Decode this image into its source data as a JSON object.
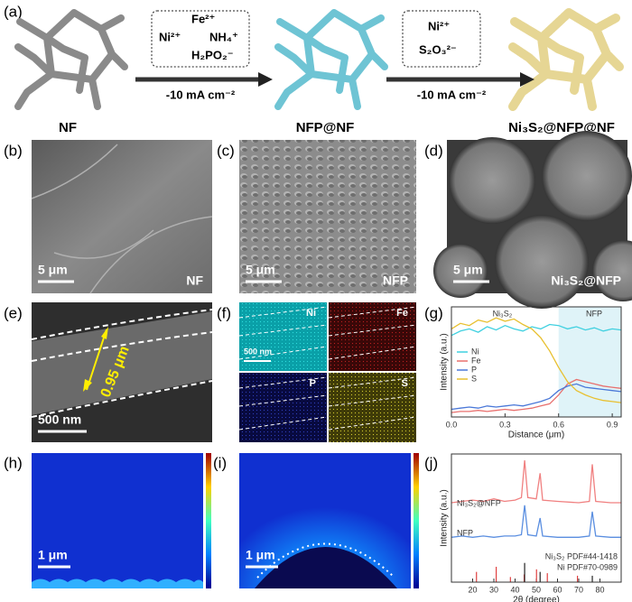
{
  "panel_labels": [
    "(a)",
    "(b)",
    "(c)",
    "(d)",
    "(e)",
    "(f)",
    "(g)",
    "(h)",
    "(i)",
    "(j)"
  ],
  "schematic": {
    "materials": [
      "NF",
      "NFP@NF",
      "Ni₃S₂@NFP@NF"
    ],
    "step1": {
      "reagents": [
        "Fe²⁺",
        "Ni²⁺",
        "NH₄⁺",
        "H₂PO₂⁻"
      ],
      "current": "-10 mA cm⁻²"
    },
    "step2": {
      "reagents": [
        "Ni²⁺",
        "S₂O₃²⁻"
      ],
      "current": "-10 mA cm⁻²"
    }
  },
  "sem": {
    "b": {
      "scale": "5 μm",
      "label": "NF"
    },
    "c": {
      "scale": "5 μm",
      "label": "NFP"
    },
    "d": {
      "scale": "5 μm",
      "label": "Ni₃S₂@NFP"
    }
  },
  "e": {
    "scale": "500 nm",
    "thickness": "0.95 μm"
  },
  "f": {
    "scale": "500 nm",
    "elements": [
      "Ni",
      "Fe",
      "P",
      "S"
    ]
  },
  "h": {
    "scale": "1 μm"
  },
  "i": {
    "scale": "1 μm"
  },
  "chart_data": [
    {
      "type": "line",
      "xlabel": "Distance (μm)",
      "ylabel": "Intensity (a.u.)",
      "annotations": [
        "Ni₃S₂",
        "NFP"
      ],
      "region": [
        0.6,
        0.95
      ],
      "xlim": [
        0,
        0.95
      ],
      "ylim": [
        0,
        1
      ],
      "xticks": [
        {
          "value": 0,
          "label": "0.0"
        },
        0.3,
        0.6,
        0.9
      ],
      "legend": "left",
      "x": [
        0,
        0.05,
        0.1,
        0.15,
        0.2,
        0.25,
        0.3,
        0.35,
        0.4,
        0.45,
        0.5,
        0.55,
        0.6,
        0.65,
        0.7,
        0.75,
        0.8,
        0.85,
        0.9,
        0.95
      ],
      "series": [
        {
          "name": "Ni",
          "color": "#3fd0e0",
          "values": [
            0.74,
            0.78,
            0.8,
            0.77,
            0.82,
            0.79,
            0.83,
            0.8,
            0.78,
            0.82,
            0.8,
            0.84,
            0.83,
            0.8,
            0.82,
            0.79,
            0.81,
            0.78,
            0.8,
            0.79
          ]
        },
        {
          "name": "Fe",
          "color": "#e8706e",
          "values": [
            0.04,
            0.05,
            0.05,
            0.06,
            0.05,
            0.06,
            0.07,
            0.06,
            0.07,
            0.08,
            0.1,
            0.12,
            0.2,
            0.3,
            0.34,
            0.32,
            0.3,
            0.28,
            0.27,
            0.26
          ]
        },
        {
          "name": "P",
          "color": "#4a78d8",
          "values": [
            0.07,
            0.08,
            0.09,
            0.08,
            0.1,
            0.09,
            0.1,
            0.11,
            0.1,
            0.12,
            0.14,
            0.17,
            0.24,
            0.28,
            0.3,
            0.27,
            0.26,
            0.25,
            0.24,
            0.23
          ]
        },
        {
          "name": "S",
          "color": "#e8c030",
          "values": [
            0.8,
            0.85,
            0.83,
            0.88,
            0.86,
            0.9,
            0.87,
            0.89,
            0.84,
            0.8,
            0.72,
            0.6,
            0.45,
            0.32,
            0.24,
            0.2,
            0.17,
            0.15,
            0.14,
            0.13
          ]
        }
      ]
    },
    {
      "type": "line",
      "xlabel": "2θ (degree)",
      "ylabel": "Intensity (a.u.)",
      "xlim": [
        10,
        90
      ],
      "ylim": [
        0,
        1
      ],
      "xticks": [
        20,
        30,
        40,
        50,
        60,
        70,
        80
      ],
      "legend": "inline",
      "x": [
        10,
        15,
        20,
        25,
        30,
        35,
        40,
        43,
        44.5,
        46,
        50,
        51.8,
        53,
        60,
        70,
        75,
        76.4,
        78,
        85,
        90
      ],
      "series": [
        {
          "name": "Ni₃S₂@NFP",
          "color": "#f08080",
          "values": [
            0.62,
            0.63,
            0.64,
            0.63,
            0.65,
            0.63,
            0.64,
            0.66,
            0.95,
            0.66,
            0.65,
            0.85,
            0.64,
            0.63,
            0.62,
            0.63,
            0.92,
            0.63,
            0.62,
            0.62
          ]
        },
        {
          "name": "NFP",
          "color": "#5a8ee0",
          "values": [
            0.35,
            0.36,
            0.35,
            0.36,
            0.35,
            0.36,
            0.36,
            0.37,
            0.6,
            0.37,
            0.36,
            0.5,
            0.36,
            0.35,
            0.35,
            0.36,
            0.55,
            0.36,
            0.35,
            0.35
          ]
        },
        {
          "name": "Ni₃S₂ PDF#44-1418",
          "type": "stick",
          "color": "#e04040",
          "x": [
            21.8,
            31.1,
            37.8,
            44.3,
            50.1,
            55.2,
            69.4
          ],
          "values": [
            0.08,
            0.12,
            0.04,
            0.06,
            0.1,
            0.07,
            0.05
          ]
        },
        {
          "name": "Ni PDF#70-0989",
          "type": "stick",
          "color": "#222222",
          "x": [
            44.5,
            51.8,
            76.4
          ],
          "values": [
            0.15,
            0.08,
            0.05
          ]
        }
      ]
    }
  ]
}
